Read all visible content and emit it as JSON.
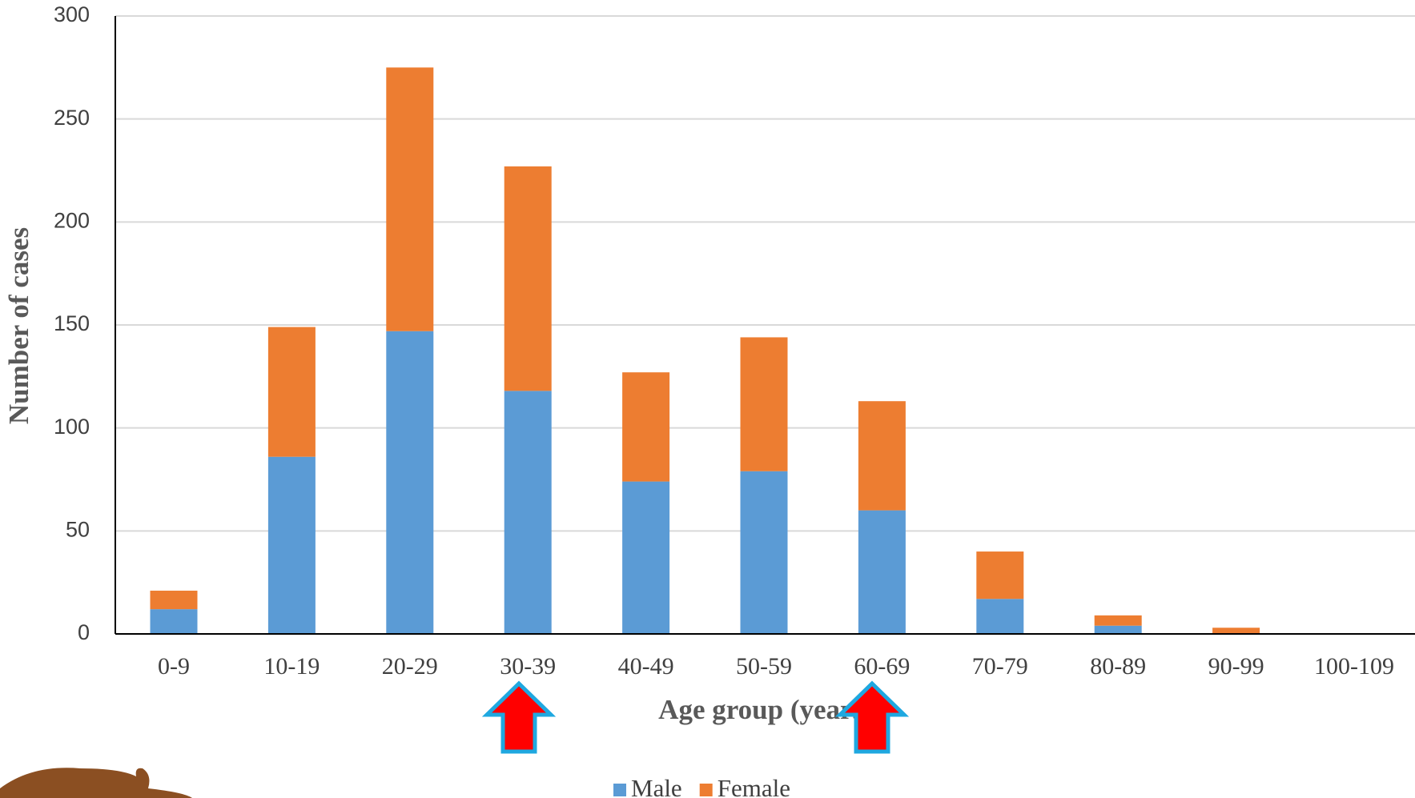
{
  "chart_data": {
    "type": "bar",
    "stacked": true,
    "x_label": "Age group (years)",
    "y_label": "Number of cases",
    "categories": [
      "0-9",
      "10-19",
      "20-29",
      "30-39",
      "40-49",
      "50-59",
      "60-69",
      "70-79",
      "80-89",
      "90-99",
      "100-109"
    ],
    "series": [
      {
        "name": "Male",
        "color": "#5b9bd5",
        "values": [
          12,
          86,
          147,
          118,
          74,
          79,
          60,
          17,
          4,
          0,
          0
        ]
      },
      {
        "name": "Female",
        "color": "#ed7d31",
        "values": [
          9,
          63,
          128,
          109,
          53,
          65,
          53,
          23,
          5,
          3,
          0
        ]
      }
    ],
    "ylim": [
      0,
      300
    ],
    "yticks": [
      0,
      50,
      100,
      150,
      200,
      250,
      300
    ],
    "grid": true,
    "legend": "bottom"
  }
}
